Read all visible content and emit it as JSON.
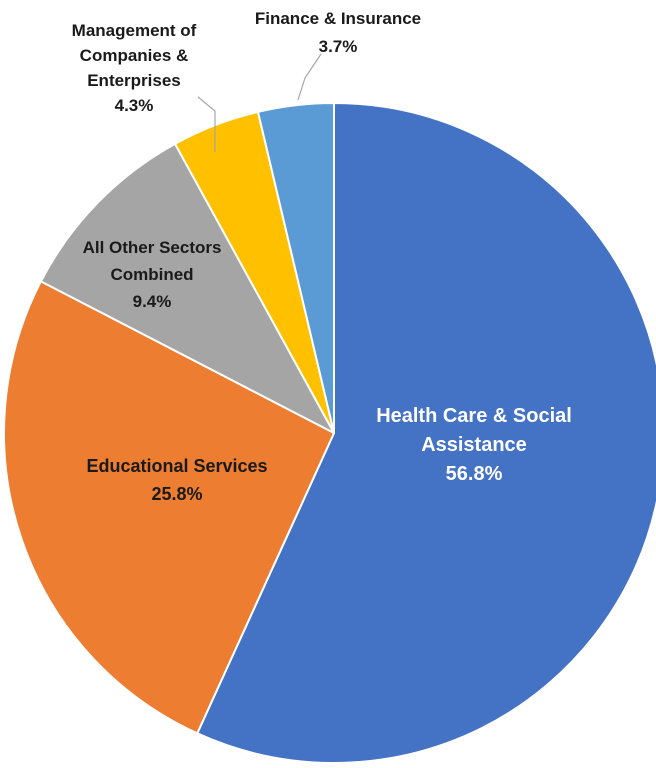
{
  "chart_data": {
    "type": "pie",
    "title": "",
    "slices": [
      {
        "label_lines": [
          "Health Care & Social",
          "Assistance"
        ],
        "value": 56.8,
        "value_label": "56.8%",
        "color": "#4472C4",
        "label_color": "#ffffff"
      },
      {
        "label_lines": [
          "Educational Services"
        ],
        "value": 25.8,
        "value_label": "25.8%",
        "color": "#ED7D31",
        "label_color": "#1a1a1a"
      },
      {
        "label_lines": [
          "All Other Sectors",
          "Combined"
        ],
        "value": 9.4,
        "value_label": "9.4%",
        "color": "#A5A5A5",
        "label_color": "#1a1a1a"
      },
      {
        "label_lines": [
          "Management of",
          "Companies &",
          "Enterprises"
        ],
        "value": 4.3,
        "value_label": "4.3%",
        "color": "#FFC000",
        "label_color": "#1a1a1a"
      },
      {
        "label_lines": [
          "Finance  &  Insurance"
        ],
        "value": 3.7,
        "value_label": "3.7%",
        "color": "#5B9BD5",
        "label_color": "#1a1a1a"
      }
    ],
    "start": "12 o'clock",
    "direction": "clockwise",
    "legend": "none"
  }
}
